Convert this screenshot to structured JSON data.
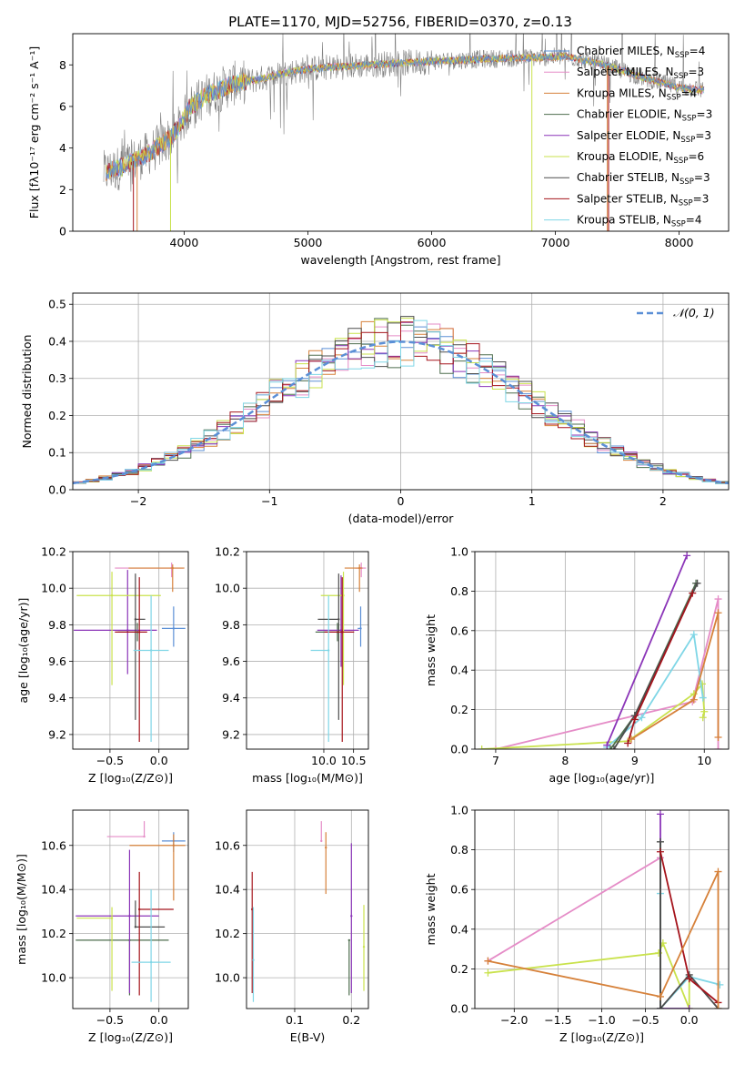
{
  "colors": {
    "chab_miles": "#5b8fd6",
    "salp_miles": "#e58cc7",
    "krou_miles": "#d6813a",
    "chab_elodie": "#4e6e4e",
    "salp_elodie": "#8b35b8",
    "krou_elodie": "#c9e24c",
    "chab_stelib": "#4d4d4d",
    "salp_stelib": "#a5141c",
    "krou_stelib": "#7fd6e6",
    "data_gray": "#808080",
    "gauss": "#5b8fd6"
  },
  "chart_data": [
    {
      "id": "spectrum",
      "type": "line",
      "title": "PLATE=1170, MJD=52756, FIBERID=0370, z=0.13",
      "xlabel": "wavelength [Angstrom, rest frame]",
      "ylabel": "Flux [fλ10⁻¹⁷ erg cm⁻² s⁻¹ A⁻¹]",
      "xlim": [
        3100,
        8400
      ],
      "ylim": [
        0,
        9.5
      ],
      "xticks": [
        "4000",
        "5000",
        "6000",
        "7000",
        "8000"
      ],
      "xtick_values": [
        4000,
        5000,
        6000,
        7000,
        8000
      ],
      "yticks": [
        "0",
        "2",
        "4",
        "6",
        "8"
      ],
      "ytick_values": [
        0,
        2,
        4,
        6,
        8
      ],
      "legend_position": "top-right",
      "legend": [
        {
          "name": "Chabrier MILES",
          "nssp": "4",
          "color": "chab_miles"
        },
        {
          "name": "Salpeter MILES",
          "nssp": "3",
          "color": "salp_miles"
        },
        {
          "name": "Kroupa MILES",
          "nssp": "4",
          "color": "krou_miles"
        },
        {
          "name": "Chabrier ELODIE",
          "nssp": "3",
          "color": "chab_elodie"
        },
        {
          "name": "Salpeter ELODIE",
          "nssp": "3",
          "color": "salp_elodie"
        },
        {
          "name": "Kroupa ELODIE",
          "nssp": "6",
          "color": "krou_elodie"
        },
        {
          "name": "Chabrier STELIB",
          "nssp": "3",
          "color": "chab_stelib"
        },
        {
          "name": "Salpeter STELIB",
          "nssp": "3",
          "color": "salp_stelib"
        },
        {
          "name": "Kroupa STELIB",
          "nssp": "4",
          "color": "krou_stelib"
        }
      ],
      "continuum": {
        "x": [
          3350,
          3500,
          3700,
          3850,
          3950,
          4050,
          4200,
          4400,
          4600,
          4800,
          5000,
          5200,
          5500,
          5800,
          6100,
          6500,
          6800,
          7100,
          7400,
          7700,
          8000,
          8200
        ],
        "y": [
          2.8,
          3.1,
          3.7,
          4.3,
          4.9,
          6.0,
          6.6,
          7.1,
          7.3,
          7.6,
          7.8,
          7.9,
          8.0,
          8.1,
          8.2,
          8.3,
          8.35,
          8.4,
          8.0,
          7.4,
          6.9,
          6.8
        ]
      },
      "model_cutoffs": [
        {
          "color": "krou_miles",
          "x": [
            3620,
            7420
          ]
        },
        {
          "color": "salp_stelib",
          "x": [
            3590,
            7430
          ]
        },
        {
          "color": "krou_elodie",
          "x": [
            3890,
            6810
          ]
        }
      ]
    },
    {
      "id": "residuals",
      "type": "area",
      "xlabel": "(data-model)/error",
      "ylabel": "Normed distribution",
      "xlim": [
        -2.5,
        2.5
      ],
      "ylim": [
        0,
        0.53
      ],
      "xticks": [
        "−2",
        "−1",
        "0",
        "1",
        "2"
      ],
      "xtick_values": [
        -2,
        -1,
        0,
        1,
        2
      ],
      "yticks": [
        "0.0",
        "0.1",
        "0.2",
        "0.3",
        "0.4",
        "0.5"
      ],
      "ytick_values": [
        0,
        0.1,
        0.2,
        0.3,
        0.4,
        0.5
      ],
      "legend_position": "top-right",
      "gaussian_label": "𝒩(0, 1)",
      "bin_width": 0.1
    },
    {
      "id": "age_vs_Z",
      "type": "scatter",
      "xlabel": "Z [log₁₀(Z/Z⊙)]",
      "ylabel": "age  [log₁₀(age/yr)]",
      "xlim": [
        -0.88,
        0.3
      ],
      "ylim": [
        9.12,
        10.2
      ],
      "xticks": [
        "−0.5",
        "0.0"
      ],
      "xtick_values": [
        -0.5,
        0.0
      ],
      "yticks": [
        "9.2",
        "9.4",
        "9.6",
        "9.8",
        "10.0",
        "10.2"
      ],
      "ytick_values": [
        9.2,
        9.4,
        9.6,
        9.8,
        10.0,
        10.2
      ],
      "points": [
        {
          "color": "chab_miles",
          "x": 0.15,
          "xerr": [
            0.12,
            0.12
          ],
          "y": 9.78,
          "yerr": [
            0.1,
            0.12
          ]
        },
        {
          "color": "salp_miles",
          "x": 0.13,
          "xerr": [
            0.58,
            0.12
          ],
          "y": 10.11,
          "yerr": [
            0.05,
            0.03
          ]
        },
        {
          "color": "krou_miles",
          "x": 0.14,
          "xerr": [
            0.45,
            0.12
          ],
          "y": 10.11,
          "yerr": [
            0.13,
            0.02
          ]
        },
        {
          "color": "chab_elodie",
          "x": -0.22,
          "xerr": [
            0.2,
            0.0
          ],
          "y": 9.76,
          "yerr": [
            0.05,
            0.05
          ]
        },
        {
          "color": "salp_elodie",
          "x": -0.32,
          "xerr": [
            0.55,
            0.3
          ],
          "y": 9.77,
          "yerr": [
            0.24,
            0.33
          ]
        },
        {
          "color": "krou_elodie",
          "x": -0.48,
          "xerr": [
            0.36,
            0.5
          ],
          "y": 9.96,
          "yerr": [
            0.49,
            0.13
          ]
        },
        {
          "color": "chab_stelib",
          "x": -0.24,
          "xerr": [
            0.0,
            0.1
          ],
          "y": 9.83,
          "yerr": [
            0.55,
            0.25
          ]
        },
        {
          "color": "salp_stelib",
          "x": -0.2,
          "xerr": [
            0.25,
            0.08
          ],
          "y": 9.76,
          "yerr": [
            0.6,
            0.3
          ]
        },
        {
          "color": "krou_stelib",
          "x": -0.08,
          "xerr": [
            0.18,
            0.18
          ],
          "y": 9.66,
          "yerr": [
            0.5,
            0.3
          ]
        }
      ]
    },
    {
      "id": "age_vs_mass",
      "type": "scatter",
      "xlabel": "mass [log₁₀(M/M⊙)]",
      "xlim": [
        8.7,
        10.75
      ],
      "ylim": [
        9.12,
        10.2
      ],
      "xticks": [
        "10.0",
        "10.5"
      ],
      "xtick_values": [
        10.0,
        10.5
      ],
      "yticks": [
        "9.2",
        "9.4",
        "9.6",
        "9.8",
        "10.0",
        "10.2"
      ],
      "ytick_values": [
        9.2,
        9.4,
        9.6,
        9.8,
        10.0,
        10.2
      ],
      "points": [
        {
          "color": "chab_miles",
          "x": 10.62,
          "xerr": [
            0.05,
            0.0
          ],
          "y": 9.78,
          "yerr": [
            0.1,
            0.12
          ]
        },
        {
          "color": "salp_miles",
          "x": 10.63,
          "xerr": [
            0.1,
            0.08
          ],
          "y": 10.11,
          "yerr": [
            0.05,
            0.03
          ]
        },
        {
          "color": "krou_miles",
          "x": 10.6,
          "xerr": [
            0.25,
            0.05
          ],
          "y": 10.11,
          "yerr": [
            0.13,
            0.02
          ]
        },
        {
          "color": "chab_elodie",
          "x": 10.23,
          "xerr": [
            0.37,
            0.0
          ],
          "y": 9.76,
          "yerr": [
            0.05,
            0.05
          ]
        },
        {
          "color": "salp_elodie",
          "x": 10.29,
          "xerr": [
            0.4,
            0.3
          ],
          "y": 9.77,
          "yerr": [
            0.2,
            0.3
          ]
        },
        {
          "color": "krou_elodie",
          "x": 10.33,
          "xerr": [
            0.38,
            0.0
          ],
          "y": 9.96,
          "yerr": [
            0.49,
            0.13
          ]
        },
        {
          "color": "chab_stelib",
          "x": 10.25,
          "xerr": [
            0.35,
            0.0
          ],
          "y": 9.83,
          "yerr": [
            0.55,
            0.25
          ]
        },
        {
          "color": "salp_stelib",
          "x": 10.31,
          "xerr": [
            0.3,
            0.2
          ],
          "y": 9.76,
          "yerr": [
            0.6,
            0.3
          ]
        },
        {
          "color": "krou_stelib",
          "x": 10.08,
          "xerr": [
            0.3,
            0.0
          ],
          "y": 9.66,
          "yerr": [
            0.5,
            0.3
          ]
        }
      ]
    },
    {
      "id": "weight_vs_age",
      "type": "line",
      "xlabel": "age  [log₁₀(age/yr)]",
      "ylabel": "mass weight",
      "xlim": [
        6.7,
        10.35
      ],
      "ylim": [
        0,
        1
      ],
      "xticks": [
        "7",
        "8",
        "9",
        "10"
      ],
      "xtick_values": [
        7,
        8,
        9,
        10
      ],
      "yticks": [
        "0.0",
        "0.2",
        "0.4",
        "0.6",
        "0.8",
        "1.0"
      ],
      "ytick_values": [
        0,
        0.2,
        0.4,
        0.6,
        0.8,
        1.0
      ],
      "series": [
        {
          "color": "salp_miles",
          "x": [
            7.0,
            9.83,
            10.2,
            10.2
          ],
          "y": [
            0.0,
            0.24,
            0.76,
            0.0
          ]
        },
        {
          "color": "krou_elodie",
          "x": [
            6.8,
            8.9,
            9.85,
            9.97,
            10.0,
            9.98
          ],
          "y": [
            0.0,
            0.04,
            0.28,
            0.33,
            0.19,
            0.16
          ]
        },
        {
          "color": "krou_stelib",
          "x": [
            8.6,
            9.1,
            9.85,
            9.98
          ],
          "y": [
            0.01,
            0.16,
            0.58,
            0.26
          ]
        },
        {
          "color": "salp_elodie",
          "x": [
            8.6,
            9.75
          ],
          "y": [
            0.02,
            0.98
          ]
        },
        {
          "color": "chab_elodie",
          "x": [
            8.65,
            9.0,
            9.88
          ],
          "y": [
            0.0,
            0.17,
            0.84
          ]
        },
        {
          "color": "chab_stelib",
          "x": [
            8.7,
            9.0,
            9.9
          ],
          "y": [
            0.0,
            0.17,
            0.84
          ]
        },
        {
          "color": "salp_stelib",
          "x": [
            8.9,
            9.0,
            9.83
          ],
          "y": [
            0.03,
            0.15,
            0.79
          ]
        },
        {
          "color": "krou_miles",
          "x": [
            8.95,
            9.85,
            10.2,
            10.2
          ],
          "y": [
            0.05,
            0.25,
            0.69,
            0.06
          ]
        }
      ]
    },
    {
      "id": "mass_vs_Z",
      "type": "scatter",
      "xlabel": "Z [log₁₀(Z/Z⊙)]",
      "ylabel": "mass [log₁₀(M/M⊙)]",
      "xlim": [
        -0.88,
        0.3
      ],
      "ylim": [
        9.86,
        10.76
      ],
      "xticks": [
        "−0.5",
        "0.0"
      ],
      "xtick_values": [
        -0.5,
        0.0
      ],
      "yticks": [
        "10.0",
        "10.2",
        "10.4",
        "10.6"
      ],
      "ytick_values": [
        10.0,
        10.2,
        10.4,
        10.6
      ],
      "points": [
        {
          "color": "chab_miles",
          "x": 0.15,
          "xerr": [
            0.12,
            0.12
          ],
          "y": 10.62,
          "yerr": [
            0.05,
            0.04
          ]
        },
        {
          "color": "salp_miles",
          "x": -0.15,
          "xerr": [
            0.38,
            0.0
          ],
          "y": 10.64,
          "yerr": [
            0.0,
            0.07
          ]
        },
        {
          "color": "krou_miles",
          "x": 0.15,
          "xerr": [
            0.45,
            0.12
          ],
          "y": 10.6,
          "yerr": [
            0.25,
            0.05
          ]
        },
        {
          "color": "chab_elodie",
          "x": -0.3,
          "xerr": [
            0.55,
            0.4
          ],
          "y": 10.17,
          "yerr": [
            0.25,
            0.0
          ]
        },
        {
          "color": "salp_elodie",
          "x": -0.3,
          "xerr": [
            0.55,
            0.3
          ],
          "y": 10.28,
          "yerr": [
            0.35,
            0.3
          ]
        },
        {
          "color": "krou_elodie",
          "x": -0.48,
          "xerr": [
            0.36,
            0.0
          ],
          "y": 10.27,
          "yerr": [
            0.33,
            0.05
          ]
        },
        {
          "color": "chab_stelib",
          "x": -0.24,
          "xerr": [
            0.0,
            0.3
          ],
          "y": 10.23,
          "yerr": [
            0.0,
            0.12
          ]
        },
        {
          "color": "salp_stelib",
          "x": -0.2,
          "xerr": [
            0.0,
            0.35
          ],
          "y": 10.31,
          "yerr": [
            0.39,
            0.17
          ]
        },
        {
          "color": "krou_stelib",
          "x": -0.08,
          "xerr": [
            0.2,
            0.2
          ],
          "y": 10.07,
          "yerr": [
            0.18,
            0.33
          ]
        }
      ]
    },
    {
      "id": "mass_vs_ebv",
      "type": "scatter",
      "xlabel": "E(B-V)",
      "xlim": [
        0.015,
        0.23
      ],
      "ylim": [
        9.86,
        10.76
      ],
      "xticks": [
        "0.1",
        "0.2"
      ],
      "xtick_values": [
        0.1,
        0.2
      ],
      "yticks": [
        "10.0",
        "10.2",
        "10.4",
        "10.6"
      ],
      "ytick_values": [
        10.0,
        10.2,
        10.4,
        10.6
      ],
      "points": [
        {
          "color": "salp_miles",
          "x": 0.147,
          "y": 10.62,
          "yerr": [
            0.0,
            0.09
          ]
        },
        {
          "color": "krou_miles",
          "x": 0.155,
          "y": 10.59,
          "yerr": [
            0.21,
            0.07
          ]
        },
        {
          "color": "chab_elodie",
          "x": 0.196,
          "y": 10.17,
          "yerr": [
            0.25,
            0.0
          ]
        },
        {
          "color": "salp_elodie",
          "x": 0.2,
          "y": 10.28,
          "yerr": [
            0.35,
            0.33
          ]
        },
        {
          "color": "krou_elodie",
          "x": 0.222,
          "y": 10.14,
          "yerr": [
            0.2,
            0.19
          ]
        },
        {
          "color": "salp_stelib",
          "x": 0.025,
          "y": 10.31,
          "yerr": [
            0.38,
            0.17
          ]
        },
        {
          "color": "krou_stelib",
          "x": 0.027,
          "y": 10.08,
          "yerr": [
            0.19,
            0.24
          ]
        }
      ]
    },
    {
      "id": "weight_vs_Z",
      "type": "line",
      "xlabel": "Z [log₁₀(Z/Z⊙)]",
      "ylabel": "mass weight",
      "xlim": [
        -2.45,
        0.45
      ],
      "ylim": [
        0,
        1
      ],
      "xticks": [
        "−2.0",
        "−1.5",
        "−1.0",
        "−0.5",
        "0.0"
      ],
      "xtick_values": [
        -2.0,
        -1.5,
        -1.0,
        -0.5,
        0.0
      ],
      "yticks": [
        "0.0",
        "0.2",
        "0.4",
        "0.6",
        "0.8",
        "1.0"
      ],
      "ytick_values": [
        0,
        0.2,
        0.4,
        0.6,
        0.8,
        1.0
      ],
      "series": [
        {
          "color": "salp_miles",
          "x": [
            -2.3,
            -0.33,
            -0.33
          ],
          "y": [
            0.24,
            0.76,
            0.0
          ]
        },
        {
          "color": "krou_elodie",
          "x": [
            -2.3,
            -0.35,
            -0.3,
            0.0,
            0.0
          ],
          "y": [
            0.18,
            0.28,
            0.33,
            0.0,
            0.16
          ]
        },
        {
          "color": "krou_stelib",
          "x": [
            -0.33,
            -0.33,
            0.0,
            0.35
          ],
          "y": [
            0.58,
            0.0,
            0.16,
            0.12
          ]
        },
        {
          "color": "salp_elodie",
          "x": [
            -0.33,
            -0.33,
            0.0
          ],
          "y": [
            0.98,
            0.0,
            0.0
          ]
        },
        {
          "color": "chab_elodie",
          "x": [
            -0.33,
            -0.33
          ],
          "y": [
            0.84,
            0.0
          ]
        },
        {
          "color": "chab_stelib",
          "x": [
            -0.33,
            -0.33,
            0.0,
            0.33
          ],
          "y": [
            0.84,
            0.0,
            0.17,
            0.0
          ]
        },
        {
          "color": "salp_stelib",
          "x": [
            -0.33,
            0.0,
            0.33
          ],
          "y": [
            0.79,
            0.15,
            0.03
          ]
        },
        {
          "color": "krou_miles",
          "x": [
            -2.3,
            -0.33,
            0.33,
            0.33
          ],
          "y": [
            0.24,
            0.06,
            0.69,
            0.0
          ]
        }
      ]
    }
  ]
}
